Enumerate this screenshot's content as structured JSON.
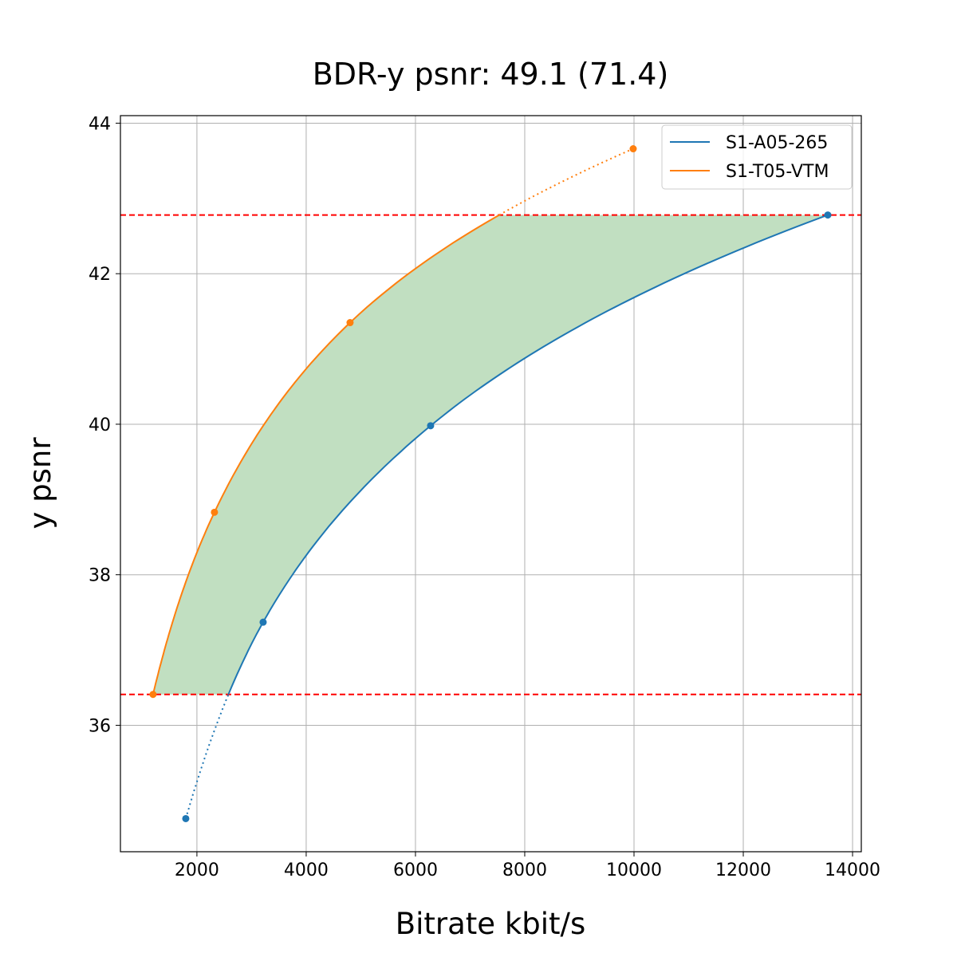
{
  "chart_data": {
    "type": "line",
    "title": "BDR-y psnr: 49.1 (71.4)",
    "xlabel": "Bitrate kbit/s",
    "ylabel": "y psnr",
    "xlim": [
      600,
      14160
    ],
    "ylim": [
      34.32,
      44.1
    ],
    "xticks": [
      2000,
      4000,
      6000,
      8000,
      10000,
      12000,
      14000
    ],
    "yticks": [
      36,
      38,
      40,
      42,
      44
    ],
    "grid": true,
    "legend_position": "top-right",
    "series": [
      {
        "name": "S1-A05-265",
        "color": "#1f77b4",
        "x": [
          1796,
          3212,
          6277,
          13547
        ],
        "y": [
          34.76,
          37.37,
          39.98,
          42.78
        ]
      },
      {
        "name": "S1-T05-VTM",
        "color": "#ff7f0e",
        "x": [
          1197,
          2321,
          4803,
          9985
        ],
        "y": [
          36.41,
          38.83,
          41.35,
          43.66
        ]
      }
    ],
    "reference_lines": {
      "y": [
        36.41,
        42.78
      ],
      "color": "#ff0000",
      "style": "dashed"
    },
    "fill_between": {
      "color": "#c1dfc1",
      "y_range": [
        36.41,
        42.78
      ]
    }
  }
}
